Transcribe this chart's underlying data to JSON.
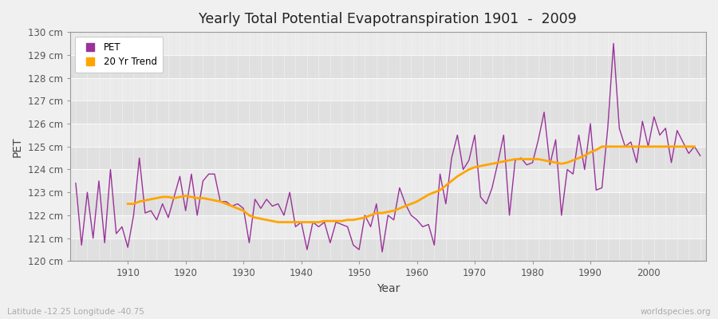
{
  "title": "Yearly Total Potential Evapotranspiration 1901  -  2009",
  "xlabel": "Year",
  "ylabel": "PET",
  "subtitle": "Latitude -12.25 Longitude -40.75",
  "watermark": "worldspecies.org",
  "pet_color": "#993399",
  "trend_color": "#FFA500",
  "fig_bg_color": "#f0f0f0",
  "plot_bg_color_light": "#ebebeb",
  "plot_bg_color_dark": "#e0e0e0",
  "grid_color": "#cccccc",
  "years": [
    1901,
    1902,
    1903,
    1904,
    1905,
    1906,
    1907,
    1908,
    1909,
    1910,
    1911,
    1912,
    1913,
    1914,
    1915,
    1916,
    1917,
    1918,
    1919,
    1920,
    1921,
    1922,
    1923,
    1924,
    1925,
    1926,
    1927,
    1928,
    1929,
    1930,
    1931,
    1932,
    1933,
    1934,
    1935,
    1936,
    1937,
    1938,
    1939,
    1940,
    1941,
    1942,
    1943,
    1944,
    1945,
    1946,
    1947,
    1948,
    1949,
    1950,
    1951,
    1952,
    1953,
    1954,
    1955,
    1956,
    1957,
    1958,
    1959,
    1960,
    1961,
    1962,
    1963,
    1964,
    1965,
    1966,
    1967,
    1968,
    1969,
    1970,
    1971,
    1972,
    1973,
    1974,
    1975,
    1976,
    1977,
    1978,
    1979,
    1980,
    1981,
    1982,
    1983,
    1984,
    1985,
    1986,
    1987,
    1988,
    1989,
    1990,
    1991,
    1992,
    1993,
    1994,
    1995,
    1996,
    1997,
    1998,
    1999,
    2000,
    2001,
    2002,
    2003,
    2004,
    2005,
    2006,
    2007,
    2008,
    2009
  ],
  "pet_values": [
    123.4,
    120.7,
    123.0,
    121.0,
    123.5,
    120.8,
    124.0,
    121.2,
    121.5,
    120.6,
    122.0,
    124.5,
    122.1,
    122.2,
    121.8,
    122.5,
    121.9,
    122.8,
    123.7,
    122.2,
    123.8,
    122.0,
    123.5,
    123.8,
    123.8,
    122.6,
    122.6,
    122.4,
    122.5,
    122.3,
    120.8,
    122.7,
    122.3,
    122.7,
    122.4,
    122.5,
    122.0,
    123.0,
    121.5,
    121.7,
    120.5,
    121.7,
    121.5,
    121.7,
    120.8,
    121.7,
    121.6,
    121.5,
    120.7,
    120.5,
    122.0,
    121.5,
    122.5,
    120.4,
    122.0,
    121.8,
    123.2,
    122.5,
    122.0,
    121.8,
    121.5,
    121.6,
    120.7,
    123.8,
    122.5,
    124.5,
    125.5,
    124.0,
    124.4,
    125.5,
    122.8,
    122.5,
    123.2,
    124.3,
    125.5,
    122.0,
    124.4,
    124.5,
    124.2,
    124.3,
    125.3,
    126.5,
    124.2,
    125.3,
    122.0,
    124.0,
    123.8,
    125.5,
    124.0,
    126.0,
    123.1,
    123.2,
    125.8,
    129.5,
    125.8,
    125.0,
    125.2,
    124.3,
    126.1,
    125.0,
    126.3,
    125.5,
    125.8,
    124.3,
    125.7,
    125.2,
    124.7,
    125.0,
    124.6
  ],
  "trend_values": [
    null,
    null,
    null,
    null,
    null,
    null,
    null,
    null,
    null,
    122.5,
    122.5,
    122.6,
    122.65,
    122.7,
    122.75,
    122.8,
    122.8,
    122.75,
    122.8,
    122.85,
    122.8,
    122.75,
    122.75,
    122.7,
    122.65,
    122.6,
    122.5,
    122.4,
    122.3,
    122.2,
    122.0,
    121.9,
    121.85,
    121.8,
    121.75,
    121.7,
    121.7,
    121.7,
    121.7,
    121.7,
    121.7,
    121.7,
    121.7,
    121.75,
    121.75,
    121.75,
    121.75,
    121.8,
    121.8,
    121.85,
    121.9,
    122.0,
    122.1,
    122.1,
    122.15,
    122.2,
    122.3,
    122.4,
    122.5,
    122.6,
    122.75,
    122.9,
    123.0,
    123.1,
    123.3,
    123.5,
    123.7,
    123.85,
    124.0,
    124.1,
    124.15,
    124.2,
    124.25,
    124.3,
    124.35,
    124.4,
    124.45,
    124.45,
    124.45,
    124.45,
    124.45,
    124.4,
    124.35,
    124.3,
    124.25,
    124.3,
    124.4,
    124.5,
    124.6,
    124.75,
    124.85,
    125.0,
    125.0,
    125.0,
    125.0,
    125.0,
    125.0,
    125.0,
    125.0,
    125.0,
    125.0,
    125.0,
    125.0,
    125.0,
    125.0,
    125.0,
    125.0,
    125.0
  ],
  "ylim": [
    120.0,
    130.0
  ],
  "yticks": [
    120,
    121,
    122,
    123,
    124,
    125,
    126,
    127,
    128,
    129,
    130
  ],
  "xticks": [
    1910,
    1920,
    1930,
    1940,
    1950,
    1960,
    1970,
    1980,
    1990,
    2000
  ],
  "legend_pet": "PET",
  "legend_trend": "20 Yr Trend"
}
